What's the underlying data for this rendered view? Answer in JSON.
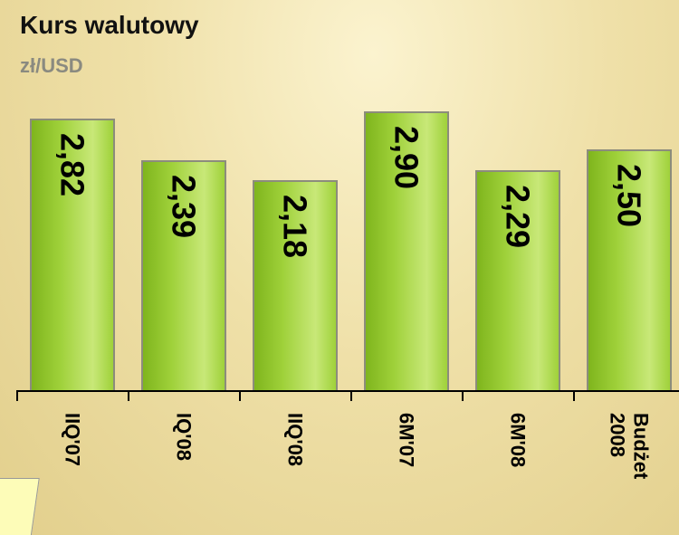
{
  "chart_data": {
    "type": "bar",
    "title": "Kurs walutowy",
    "subtitle": "zł/USD",
    "categories": [
      "IIQ'07",
      "IQ'08",
      "IIQ'08",
      "6M'07",
      "6M'08",
      "Budżet 2008"
    ],
    "values": [
      2.82,
      2.39,
      2.18,
      2.9,
      2.29,
      2.5
    ],
    "value_labels": [
      "2,82",
      "2,39",
      "2,18",
      "2,90",
      "2,29",
      "2,50"
    ],
    "color": "#9fd13a"
  }
}
